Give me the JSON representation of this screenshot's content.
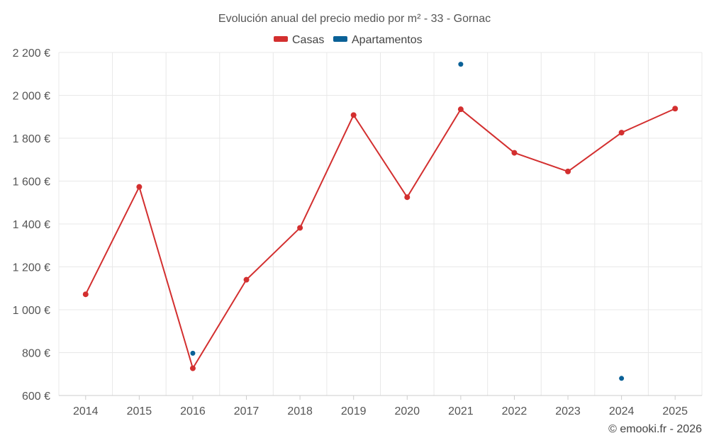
{
  "chart_data": {
    "type": "line",
    "title": "Evolución anual del precio medio por m² - 33 - Gornac",
    "categories": [
      "2014",
      "2015",
      "2016",
      "2017",
      "2018",
      "2019",
      "2020",
      "2021",
      "2022",
      "2023",
      "2024",
      "2025"
    ],
    "ylim": [
      600,
      2200
    ],
    "yticks": [
      600,
      800,
      1000,
      1200,
      1400,
      1600,
      1800,
      2000,
      2200
    ],
    "ytick_labels": [
      "600 €",
      "800 €",
      "1 000 €",
      "1 200 €",
      "1 400 €",
      "1 600 €",
      "1 800 €",
      "2 000 €",
      "2 200 €"
    ],
    "grid": true,
    "legend_position": "top-center",
    "series": [
      {
        "name": "Casas",
        "color": "#d32f2f",
        "style": "line-markers",
        "values": [
          1072,
          1573,
          727,
          1140,
          1382,
          1908,
          1525,
          1935,
          1732,
          1645,
          1826,
          1938
        ]
      },
      {
        "name": "Apartamentos",
        "color": "#0a6197",
        "style": "markers",
        "values": [
          null,
          null,
          797,
          null,
          null,
          null,
          null,
          2145,
          null,
          null,
          680,
          null
        ]
      }
    ],
    "credit": "© emooki.fr - 2026"
  }
}
